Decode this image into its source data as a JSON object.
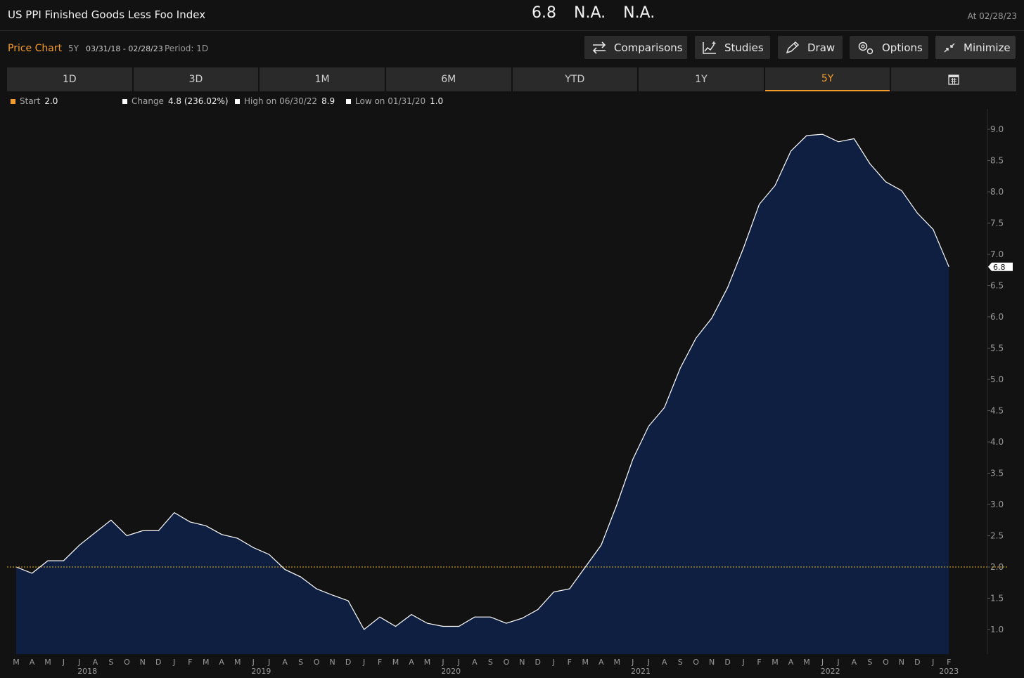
{
  "header": {
    "title": "US PPI Finished Goods Less Foo Index",
    "last": "6.8",
    "chg": "N.A.",
    "pct": "N.A.",
    "as_of": "At 02/28/23"
  },
  "toolbar": {
    "label": "Price Chart",
    "range": "5Y",
    "dates": "03/31/18 - 02/28/23",
    "period": "Period: 1D",
    "buttons": {
      "comparisons": "Comparisons",
      "studies": "Studies",
      "draw": "Draw",
      "options": "Options",
      "minimize": "Minimize"
    }
  },
  "tabs": [
    {
      "label": "1D"
    },
    {
      "label": "3D"
    },
    {
      "label": "1M"
    },
    {
      "label": "6M"
    },
    {
      "label": "YTD"
    },
    {
      "label": "1Y"
    },
    {
      "label": "5Y",
      "active": true
    }
  ],
  "stats": {
    "start_label": "Start",
    "start_value": "2.0",
    "change_label": "Change",
    "change_value": "4.8 (236.02%)",
    "high_label": "High on 06/30/22",
    "high_value": "8.9",
    "low_label": "Low on 01/31/20",
    "low_value": "1.0"
  },
  "colors": {
    "accent": "#f39c2b",
    "area_fill": "#0e1f42",
    "line": "#ffffff",
    "start_line": "#e8b423"
  },
  "chart_data": {
    "type": "area",
    "x": [
      "2018-03",
      "2018-04",
      "2018-05",
      "2018-06",
      "2018-07",
      "2018-08",
      "2018-09",
      "2018-10",
      "2018-11",
      "2018-12",
      "2019-01",
      "2019-02",
      "2019-03",
      "2019-04",
      "2019-05",
      "2019-06",
      "2019-07",
      "2019-08",
      "2019-09",
      "2019-10",
      "2019-11",
      "2019-12",
      "2020-01",
      "2020-02",
      "2020-03",
      "2020-04",
      "2020-05",
      "2020-06",
      "2020-07",
      "2020-08",
      "2020-09",
      "2020-10",
      "2020-11",
      "2020-12",
      "2021-01",
      "2021-02",
      "2021-03",
      "2021-04",
      "2021-05",
      "2021-06",
      "2021-07",
      "2021-08",
      "2021-09",
      "2021-10",
      "2021-11",
      "2021-12",
      "2022-01",
      "2022-02",
      "2022-03",
      "2022-04",
      "2022-05",
      "2022-06",
      "2022-07",
      "2022-08",
      "2022-09",
      "2022-10",
      "2022-11",
      "2022-12",
      "2023-01",
      "2023-02"
    ],
    "values": [
      2.0,
      1.9,
      2.1,
      2.1,
      2.35,
      2.55,
      2.75,
      2.5,
      2.58,
      2.58,
      2.87,
      2.72,
      2.66,
      2.52,
      2.46,
      2.31,
      2.2,
      1.96,
      1.84,
      1.65,
      1.55,
      1.46,
      1.0,
      1.2,
      1.05,
      1.24,
      1.1,
      1.05,
      1.05,
      1.2,
      1.2,
      1.1,
      1.18,
      1.32,
      1.6,
      1.65,
      2.0,
      2.35,
      3.0,
      3.72,
      4.25,
      4.55,
      5.18,
      5.66,
      5.98,
      6.47,
      7.1,
      7.8,
      8.1,
      8.65,
      8.9,
      8.92,
      8.8,
      8.85,
      8.45,
      8.16,
      8.02,
      7.66,
      7.4,
      6.8
    ],
    "ylim": [
      0.6,
      9.3
    ],
    "yticks": [
      1.0,
      1.5,
      2.0,
      2.5,
      3.0,
      3.5,
      4.0,
      4.5,
      5.0,
      5.5,
      6.0,
      6.5,
      7.0,
      7.5,
      8.0,
      8.5,
      9.0
    ],
    "month_ticks": [
      "M",
      "A",
      "M",
      "J",
      "J",
      "A",
      "S",
      "O",
      "N",
      "D",
      "J",
      "F",
      "M",
      "A",
      "M",
      "J",
      "J",
      "A",
      "S",
      "O",
      "N",
      "D",
      "J",
      "F",
      "M",
      "A",
      "M",
      "J",
      "J",
      "A",
      "S",
      "O",
      "N",
      "D",
      "J",
      "F",
      "M",
      "A",
      "M",
      "J",
      "J",
      "A",
      "S",
      "O",
      "N",
      "D",
      "J",
      "F",
      "M",
      "A",
      "M",
      "J",
      "J",
      "A",
      "S",
      "O",
      "N",
      "D",
      "J",
      "F"
    ],
    "year_ticks": [
      {
        "label": "2018",
        "month_index": 4.5
      },
      {
        "label": "2019",
        "month_index": 15.5
      },
      {
        "label": "2020",
        "month_index": 27.5
      },
      {
        "label": "2021",
        "month_index": 39.5
      },
      {
        "label": "2022",
        "month_index": 51.5
      },
      {
        "label": "2023",
        "month_index": 59
      }
    ],
    "start_level": 2.0,
    "last_label": "6.8",
    "grid": false
  }
}
